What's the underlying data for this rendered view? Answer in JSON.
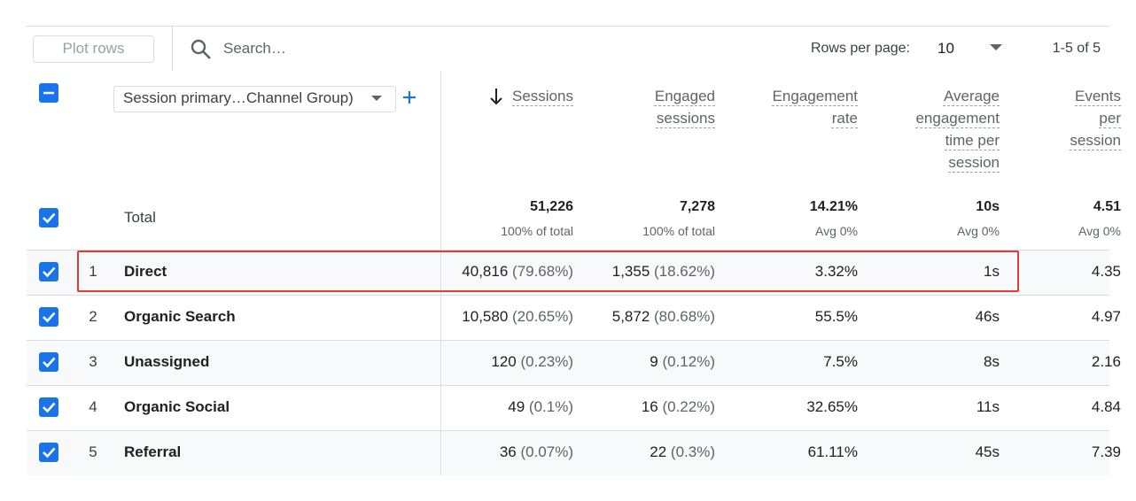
{
  "toolbar": {
    "plot_rows": "Plot rows",
    "search_placeholder": "Search…",
    "rows_per_page_label": "Rows per page:",
    "rows_per_page": "10",
    "pagination": "1-5 of 5"
  },
  "table": {
    "dimension": "Session primary…Channel Group)",
    "columns": [
      "Sessions",
      "Engaged sessions",
      "Engagement rate",
      "Average engagement time per session",
      "Events per session"
    ],
    "totals": {
      "label": "Total",
      "values": [
        "51,226",
        "7,278",
        "14.21%",
        "10s",
        "4.51"
      ],
      "notes": [
        "100% of total",
        "100% of total",
        "Avg 0%",
        "Avg 0%",
        "Avg 0%"
      ]
    },
    "rows": [
      {
        "rank": "1",
        "name": "Direct",
        "cells": [
          {
            "value": "40,816",
            "share": "(79.68%)"
          },
          {
            "value": "1,355",
            "share": "(18.62%)"
          },
          "3.32%",
          "1s",
          "4.35"
        ]
      },
      {
        "rank": "2",
        "name": "Organic Search",
        "cells": [
          {
            "value": "10,580",
            "share": "(20.65%)"
          },
          {
            "value": "5,872",
            "share": "(80.68%)"
          },
          "55.5%",
          "46s",
          "4.97"
        ]
      },
      {
        "rank": "3",
        "name": "Unassigned",
        "cells": [
          {
            "value": "120",
            "share": "(0.23%)"
          },
          {
            "value": "9",
            "share": "(0.12%)"
          },
          "7.5%",
          "8s",
          "2.16"
        ]
      },
      {
        "rank": "4",
        "name": "Organic Social",
        "cells": [
          {
            "value": "49",
            "share": "(0.1%)"
          },
          {
            "value": "16",
            "share": "(0.22%)"
          },
          "32.65%",
          "11s",
          "4.84"
        ]
      },
      {
        "rank": "5",
        "name": "Referral",
        "cells": [
          {
            "value": "36",
            "share": "(0.07%)"
          },
          {
            "value": "22",
            "share": "(0.3%)"
          },
          "61.11%",
          "45s",
          "7.39"
        ]
      }
    ]
  }
}
